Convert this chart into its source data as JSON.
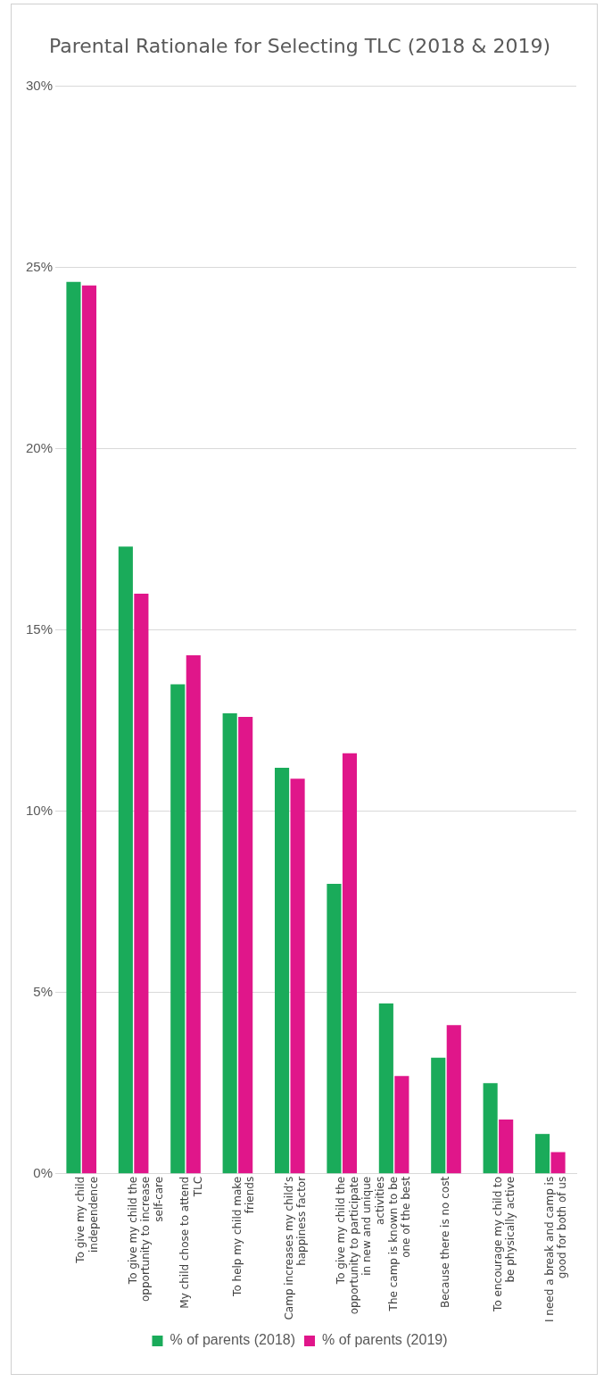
{
  "chart_data": {
    "type": "bar",
    "title": "Parental Rationale for Selecting TLC (2018 & 2019)",
    "categories": [
      "To give my child independence",
      "To give my child the opportunity to increase self-care",
      "My child chose to attend TLC",
      "To help my child make friends",
      "Camp increases my child’s happiness factor",
      "To give my child the opportunity to participate in new and unique activities",
      "The camp is known to be one of the best",
      "Because there is no cost",
      "To encourage my child to be physically active",
      "I need a break and camp is good for both of us"
    ],
    "series": [
      {
        "name": "% of parents (2018)",
        "color": "#1aab5a",
        "values": [
          24.6,
          17.3,
          13.5,
          12.7,
          11.2,
          8.0,
          4.7,
          3.2,
          2.5,
          1.1
        ]
      },
      {
        "name": "% of parents (2019)",
        "color": "#e0168a",
        "values": [
          24.5,
          16.0,
          14.3,
          12.6,
          10.9,
          11.6,
          2.7,
          4.1,
          1.5,
          0.6
        ]
      }
    ],
    "ylim": [
      0,
      30
    ],
    "yticks": [
      {
        "value": 0,
        "label": "0%"
      },
      {
        "value": 5,
        "label": "5%"
      },
      {
        "value": 10,
        "label": "10%"
      },
      {
        "value": 15,
        "label": "15%"
      },
      {
        "value": 20,
        "label": "20%"
      },
      {
        "value": 25,
        "label": "25%"
      },
      {
        "value": 30,
        "label": "30%"
      }
    ],
    "grid": "y",
    "legend": "bottom"
  }
}
